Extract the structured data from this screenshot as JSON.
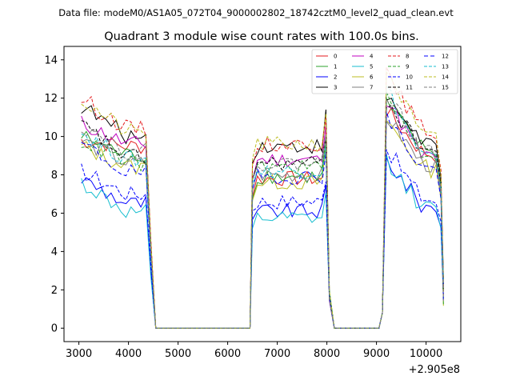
{
  "chart_data": {
    "type": "line",
    "suptitle": "Data file: modeM0/AS1A05_072T04_9000002802_18742cztM0_level2_quad_clean.evt",
    "title": "Quadrant 3 module wise count rates with 100.0s bins.",
    "xlabel": "",
    "ylabel": "",
    "x_offset_label": "+2.905e8",
    "xlim": [
      2700,
      10700
    ],
    "ylim": [
      -0.7,
      14.7
    ],
    "xticks": [
      3000,
      4000,
      5000,
      6000,
      7000,
      8000,
      9000,
      10000
    ],
    "xtick_labels": [
      "3000",
      "4000",
      "5000",
      "6000",
      "7000",
      "8000",
      "9000",
      "10000"
    ],
    "yticks": [
      0,
      2,
      4,
      6,
      8,
      10,
      12,
      14
    ],
    "ytick_labels": [
      "0",
      "2",
      "4",
      "6",
      "8",
      "10",
      "12",
      "14"
    ],
    "legend_location": "upper right",
    "segments": [
      {
        "x_start": 3050,
        "x_end": 4350,
        "fall_to": 4550
      },
      {
        "x_start": 6450,
        "x_end": 8000,
        "rise_from": 6450,
        "fall_to": 8150
      },
      {
        "x_start": 9150,
        "x_end": 10350,
        "rise_from": 9050
      }
    ],
    "series": [
      {
        "name": "0",
        "color": "#e41a1c",
        "dash": "solid",
        "levels": [
          9.5,
          7.8,
          9.8
        ],
        "starts": [
          9.8,
          7.6,
          11.5
        ]
      },
      {
        "name": "1",
        "color": "#2ca02c",
        "dash": "solid",
        "levels": [
          9.0,
          7.9,
          10.0
        ],
        "starts": [
          10.0,
          7.5,
          11.8
        ]
      },
      {
        "name": "2",
        "color": "#0000ff",
        "dash": "solid",
        "levels": [
          6.5,
          6.1,
          7.0
        ],
        "starts": [
          7.8,
          6.3,
          9.0
        ]
      },
      {
        "name": "3",
        "color": "#000000",
        "dash": "solid",
        "levels": [
          10.0,
          9.5,
          10.4
        ],
        "starts": [
          11.6,
          9.6,
          12.2
        ]
      },
      {
        "name": "4",
        "color": "#c000c0",
        "dash": "solid",
        "levels": [
          9.6,
          8.8,
          9.6
        ],
        "starts": [
          10.7,
          8.6,
          12.2
        ]
      },
      {
        "name": "5",
        "color": "#17becf",
        "dash": "solid",
        "levels": [
          6.0,
          5.7,
          6.9
        ],
        "starts": [
          7.6,
          5.8,
          9.0
        ]
      },
      {
        "name": "6",
        "color": "#bcbd22",
        "dash": "solid",
        "levels": [
          8.4,
          7.6,
          9.0
        ],
        "starts": [
          9.5,
          7.4,
          11.0
        ]
      },
      {
        "name": "7",
        "color": "#7f7f7f",
        "dash": "solid",
        "levels": [
          8.6,
          8.0,
          9.2
        ],
        "starts": [
          9.8,
          8.0,
          11.2
        ]
      },
      {
        "name": "8",
        "color": "#e41a1c",
        "dash": "dashed",
        "levels": [
          10.4,
          9.6,
          11.0
        ],
        "starts": [
          12.0,
          9.4,
          13.4
        ]
      },
      {
        "name": "9",
        "color": "#2ca02c",
        "dash": "dashed",
        "levels": [
          8.6,
          8.4,
          9.8
        ],
        "starts": [
          9.8,
          8.6,
          12.4
        ]
      },
      {
        "name": "10",
        "color": "#0000ff",
        "dash": "dashed",
        "levels": [
          7.0,
          6.6,
          7.4
        ],
        "starts": [
          8.2,
          6.8,
          9.6
        ]
      },
      {
        "name": "11",
        "color": "#000000",
        "dash": "dashed",
        "levels": [
          8.9,
          8.6,
          10.0
        ],
        "starts": [
          10.6,
          8.6,
          12.0
        ]
      },
      {
        "name": "12",
        "color": "#0000ff",
        "dash": "dashed2",
        "levels": [
          8.1,
          7.9,
          9.0
        ],
        "starts": [
          9.6,
          8.0,
          11.2
        ]
      },
      {
        "name": "13",
        "color": "#17becf",
        "dash": "dashed",
        "levels": [
          8.8,
          8.2,
          9.6
        ],
        "starts": [
          10.2,
          8.4,
          12.8
        ]
      },
      {
        "name": "14",
        "color": "#bcbd22",
        "dash": "dashed",
        "levels": [
          10.2,
          9.6,
          10.6
        ],
        "starts": [
          11.9,
          9.8,
          13.8
        ]
      },
      {
        "name": "15",
        "color": "#7f7f7f",
        "dash": "dashed",
        "levels": [
          9.2,
          8.6,
          9.8
        ],
        "starts": [
          10.6,
          8.6,
          12.6
        ]
      }
    ]
  }
}
